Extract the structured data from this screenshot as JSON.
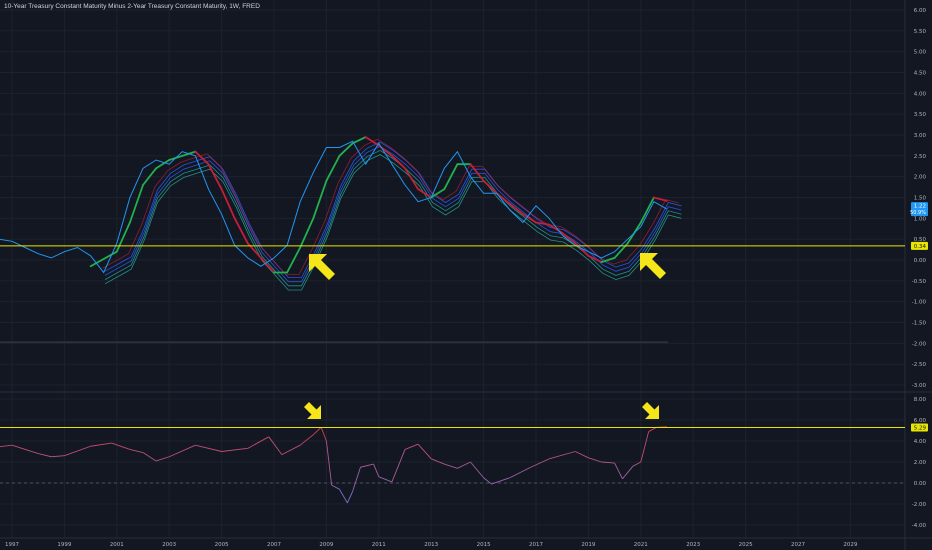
{
  "header": {
    "title": "10-Year Treasury Constant Maturity Minus 2-Year Treasury Constant Maturity, 1W, FRED"
  },
  "colors": {
    "background": "#131722",
    "grid": "#1e222d",
    "price_line": "#2196f3",
    "ma_up": "#22b14c",
    "ma_down": "#c41e3a",
    "ribbon": "#2962ff",
    "ribbon_teal": "#26a69a",
    "level_line": "#e8e600",
    "arrow": "#f5e61a",
    "axis_text": "#b2b5be",
    "price_tag": "#2196f3",
    "level_tag": "#e8e600"
  },
  "chart_data": [
    {
      "type": "line",
      "title": "",
      "x_ticks": [
        "1997",
        "1999",
        "2001",
        "2003",
        "2005",
        "2007",
        "2009",
        "2011",
        "2013",
        "2015",
        "2017",
        "2019",
        "2021",
        "2023",
        "2025",
        "2027",
        "2029"
      ],
      "y_ticks": [
        "6.00",
        "5.50",
        "5.00",
        "4.50",
        "4.00",
        "3.50",
        "3.00",
        "2.50",
        "2.00",
        "1.50",
        "1.00",
        "0.50",
        "0.00",
        "-0.50",
        "-1.00",
        "-1.50",
        "-2.00",
        "-2.50",
        "-3.00"
      ],
      "ylim": [
        -3.0,
        6.0
      ],
      "grid": true,
      "series": [
        {
          "values": [
            [
              1996.0,
              0.55
            ],
            [
              1996.5,
              0.5
            ],
            [
              1997.0,
              0.45
            ],
            [
              1997.5,
              0.3
            ],
            [
              1998.0,
              0.15
            ],
            [
              1998.5,
              0.05
            ],
            [
              1999.0,
              0.2
            ],
            [
              1999.5,
              0.3
            ],
            [
              2000.0,
              0.1
            ],
            [
              2000.5,
              -0.3
            ],
            [
              2001.0,
              0.4
            ],
            [
              2001.5,
              1.5
            ],
            [
              2002.0,
              2.2
            ],
            [
              2002.5,
              2.4
            ],
            [
              2003.0,
              2.3
            ],
            [
              2003.5,
              2.6
            ],
            [
              2004.0,
              2.5
            ],
            [
              2004.5,
              1.7
            ],
            [
              2005.0,
              1.1
            ],
            [
              2005.5,
              0.35
            ],
            [
              2006.0,
              0.05
            ],
            [
              2006.5,
              -0.15
            ],
            [
              2007.0,
              0.05
            ],
            [
              2007.5,
              0.35
            ],
            [
              2008.0,
              1.4
            ],
            [
              2008.5,
              2.1
            ],
            [
              2009.0,
              2.7
            ],
            [
              2009.5,
              2.7
            ],
            [
              2010.0,
              2.85
            ],
            [
              2010.5,
              2.3
            ],
            [
              2011.0,
              2.8
            ],
            [
              2011.5,
              2.3
            ],
            [
              2012.0,
              1.8
            ],
            [
              2012.5,
              1.4
            ],
            [
              2013.0,
              1.5
            ],
            [
              2013.5,
              2.2
            ],
            [
              2014.0,
              2.6
            ],
            [
              2014.5,
              2.0
            ],
            [
              2015.0,
              1.6
            ],
            [
              2015.5,
              1.6
            ],
            [
              2016.0,
              1.2
            ],
            [
              2016.5,
              0.9
            ],
            [
              2017.0,
              1.3
            ],
            [
              2017.5,
              1.0
            ],
            [
              2018.0,
              0.6
            ],
            [
              2018.5,
              0.35
            ],
            [
              2019.0,
              0.2
            ],
            [
              2019.5,
              0.05
            ],
            [
              2020.0,
              0.2
            ],
            [
              2020.5,
              0.5
            ],
            [
              2021.0,
              0.8
            ],
            [
              2021.5,
              1.4
            ],
            [
              2022.0,
              1.22
            ]
          ]
        },
        {
          "values": [
            [
              2000.0,
              -0.15
            ],
            [
              2001.0,
              0.2
            ],
            [
              2001.5,
              0.9
            ],
            [
              2002.0,
              1.8
            ],
            [
              2002.5,
              2.2
            ],
            [
              2003.0,
              2.4
            ],
            [
              2003.5,
              2.5
            ],
            [
              2004.0,
              2.6
            ],
            [
              2004.5,
              2.3
            ],
            [
              2005.0,
              1.7
            ],
            [
              2005.5,
              1.0
            ],
            [
              2006.0,
              0.4
            ],
            [
              2006.5,
              0.05
            ],
            [
              2007.0,
              -0.3
            ],
            [
              2007.5,
              -0.3
            ],
            [
              2008.0,
              0.3
            ],
            [
              2008.5,
              1.0
            ],
            [
              2009.0,
              1.9
            ],
            [
              2009.5,
              2.5
            ],
            [
              2010.0,
              2.8
            ],
            [
              2010.5,
              2.95
            ],
            [
              2011.0,
              2.75
            ],
            [
              2011.5,
              2.5
            ],
            [
              2012.0,
              2.2
            ],
            [
              2012.5,
              1.7
            ],
            [
              2013.0,
              1.5
            ],
            [
              2013.5,
              1.7
            ],
            [
              2014.0,
              2.3
            ],
            [
              2014.5,
              2.3
            ],
            [
              2015.0,
              1.9
            ],
            [
              2015.5,
              1.6
            ],
            [
              2016.0,
              1.35
            ],
            [
              2016.5,
              1.1
            ],
            [
              2017.0,
              0.9
            ],
            [
              2017.5,
              0.85
            ],
            [
              2018.0,
              0.65
            ],
            [
              2018.5,
              0.4
            ],
            [
              2019.0,
              0.1
            ],
            [
              2019.5,
              -0.05
            ],
            [
              2020.0,
              0.05
            ],
            [
              2020.5,
              0.4
            ],
            [
              2021.0,
              0.9
            ],
            [
              2021.5,
              1.5
            ],
            [
              2022.0,
              1.42
            ]
          ]
        }
      ],
      "level_line": 0.34,
      "last_value": "1.22",
      "last_value_pct": "50.9%",
      "level_label": "0.34"
    },
    {
      "type": "line",
      "title": "",
      "y_ticks": [
        "8.00",
        "6.00",
        "4.00",
        "2.00",
        "0.00",
        "-2.00",
        "-4.00"
      ],
      "ylim": [
        -4.5,
        8.5
      ],
      "grid": true,
      "series": [
        {
          "values": [
            [
              1996.0,
              3.3
            ],
            [
              1997.0,
              3.6
            ],
            [
              1998.0,
              2.8
            ],
            [
              1998.5,
              2.5
            ],
            [
              1999.0,
              2.6
            ],
            [
              2000.0,
              3.5
            ],
            [
              2000.8,
              3.8
            ],
            [
              2001.5,
              3.2
            ],
            [
              2002.0,
              2.9
            ],
            [
              2002.5,
              2.1
            ],
            [
              2003.0,
              2.5
            ],
            [
              2004.0,
              3.6
            ],
            [
              2005.0,
              3.0
            ],
            [
              2006.0,
              3.3
            ],
            [
              2006.8,
              4.4
            ],
            [
              2007.3,
              2.7
            ],
            [
              2008.0,
              3.6
            ],
            [
              2008.5,
              4.6
            ],
            [
              2008.8,
              5.3
            ],
            [
              2009.0,
              4.0
            ],
            [
              2009.2,
              -0.2
            ],
            [
              2009.5,
              -0.6
            ],
            [
              2009.8,
              -1.9
            ],
            [
              2010.0,
              -0.8
            ],
            [
              2010.3,
              1.5
            ],
            [
              2010.8,
              1.8
            ],
            [
              2011.0,
              0.6
            ],
            [
              2011.5,
              0.1
            ],
            [
              2012.0,
              3.2
            ],
            [
              2012.5,
              3.7
            ],
            [
              2013.0,
              2.3
            ],
            [
              2013.5,
              1.8
            ],
            [
              2014.0,
              1.4
            ],
            [
              2014.5,
              2.0
            ],
            [
              2015.0,
              0.5
            ],
            [
              2015.3,
              -0.1
            ],
            [
              2016.0,
              0.5
            ],
            [
              2016.8,
              1.5
            ],
            [
              2017.5,
              2.3
            ],
            [
              2018.5,
              3.0
            ],
            [
              2019.0,
              2.4
            ],
            [
              2019.5,
              2.0
            ],
            [
              2020.0,
              1.9
            ],
            [
              2020.3,
              0.4
            ],
            [
              2020.7,
              1.6
            ],
            [
              2021.0,
              2.0
            ],
            [
              2021.3,
              4.9
            ],
            [
              2021.6,
              5.3
            ],
            [
              2022.0,
              5.35
            ]
          ]
        }
      ],
      "level_line": 5.29,
      "level_label": "5.29"
    }
  ]
}
